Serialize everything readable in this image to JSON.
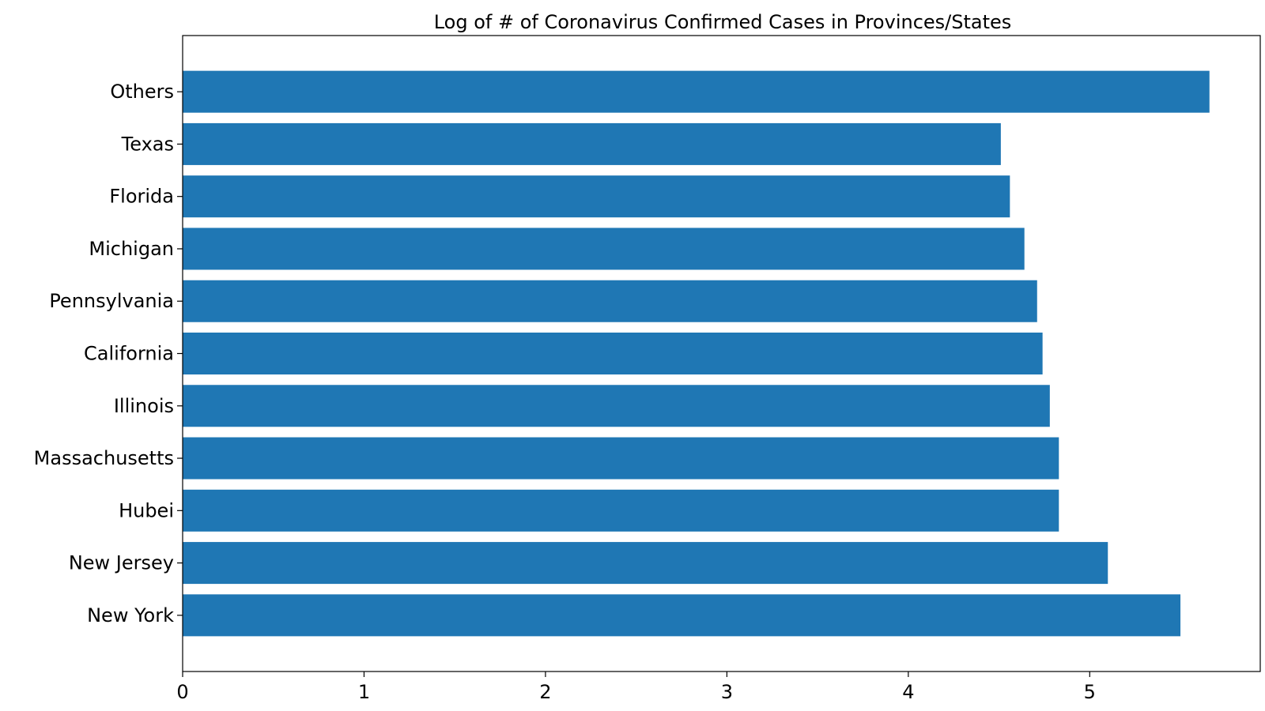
{
  "chart_data": {
    "type": "bar",
    "orientation": "horizontal",
    "title": "Log of # of Coronavirus Confirmed Cases in Provinces/States",
    "xlabel": "",
    "ylabel": "",
    "categories": [
      "New York",
      "New Jersey",
      "Hubei",
      "Massachusetts",
      "Illinois",
      "California",
      "Pennsylvania",
      "Michigan",
      "Florida",
      "Texas",
      "Others"
    ],
    "values": [
      5.5,
      5.1,
      4.83,
      4.83,
      4.78,
      4.74,
      4.71,
      4.64,
      4.56,
      4.51,
      5.66
    ],
    "xlim": [
      0,
      5.94
    ],
    "xticks": [
      0,
      1,
      2,
      3,
      4,
      5
    ],
    "grid": false,
    "legend": "none",
    "bar_color": "#1f77b4"
  }
}
